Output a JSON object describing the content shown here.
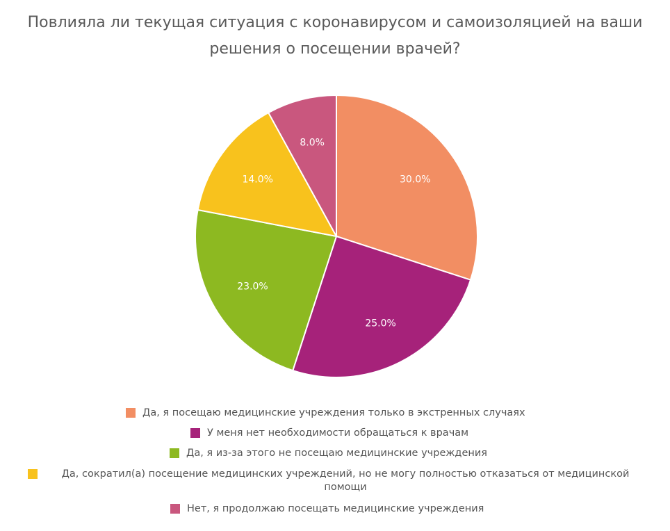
{
  "chart_data": {
    "type": "pie",
    "title_lines": [
      "Повлияла ли текущая ситуация с коронавирусом и самоизоляцией на ваши",
      "решения о посещении врачей?"
    ],
    "slices": [
      {
        "label": "Да, я посещаю медицинские учреждения только в экстренных случаях",
        "value": 30.0,
        "value_label": "30.0%",
        "color": "#f28e63"
      },
      {
        "label": "У меня нет необходимости обращаться к врачам",
        "value": 25.0,
        "value_label": "25.0%",
        "color": "#a6227a"
      },
      {
        "label": "Да, я из-за этого не посещаю медицинские учреждения",
        "value": 23.0,
        "value_label": "23.0%",
        "color": "#8db921"
      },
      {
        "label": "Да, сократил(а) посещение медицинских учреждений, но не могу полностью отказаться от медицинской помощи",
        "value": 14.0,
        "value_label": "14.0%",
        "color": "#f8c21d"
      },
      {
        "label": "Нет, я продолжаю посещать медицинские учреждения",
        "value": 8.0,
        "value_label": "8.0%",
        "color": "#c9577e"
      }
    ],
    "legend_position": "bottom"
  }
}
